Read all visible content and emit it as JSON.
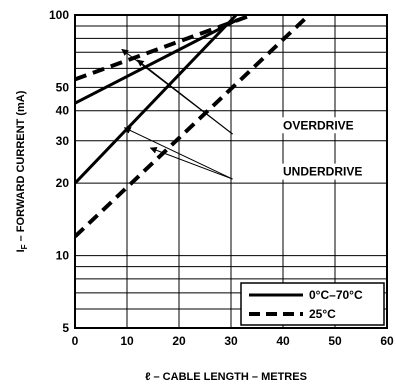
{
  "chart_data": {
    "type": "line",
    "title": "",
    "xlabel": "ℓ – CABLE LENGTH – METRES",
    "ylabel": {
      "prefix": "I",
      "subscript": "F",
      "suffix": " – FORWARD CURRENT (mA)"
    },
    "x_ticks": [
      0,
      10,
      20,
      30,
      40,
      50,
      60
    ],
    "x_tick_labels": [
      "0",
      "10",
      "20",
      "30",
      "40",
      "50",
      "60"
    ],
    "y_scale": "log",
    "y_major_ticks": [
      5,
      10,
      20,
      30,
      40,
      50,
      100
    ],
    "y_tick_labels": [
      "5",
      "10",
      "20",
      "30",
      "40",
      "50",
      "100"
    ],
    "y_gridlines": [
      5,
      6,
      7,
      8,
      9,
      10,
      20,
      30,
      40,
      50,
      60,
      70,
      80,
      90,
      100
    ],
    "xlim": [
      0,
      60
    ],
    "ylim": [
      5,
      100
    ],
    "grid": true,
    "legend_position": "bottom-right",
    "legend": [
      {
        "label": "0°C–70°C",
        "style": "solid"
      },
      {
        "label": "25°C",
        "style": "dashed"
      }
    ],
    "series": [
      {
        "group": "OVERDRIVE",
        "temperature": "0°C–70°C",
        "style": "solid",
        "x": [
          0,
          31
        ],
        "y": [
          43,
          95
        ]
      },
      {
        "group": "OVERDRIVE",
        "temperature": "25°C",
        "style": "dashed",
        "x": [
          0,
          34
        ],
        "y": [
          54,
          100
        ]
      },
      {
        "group": "UNDERDRIVE",
        "temperature": "0°C–70°C",
        "style": "solid",
        "x": [
          0,
          31
        ],
        "y": [
          20,
          100
        ]
      },
      {
        "group": "UNDERDRIVE",
        "temperature": "25°C",
        "style": "dashed",
        "x": [
          0,
          45
        ],
        "y": [
          12,
          100
        ]
      }
    ],
    "annotations": [
      {
        "text": "OVERDRIVE",
        "targets": [
          {
            "x": 9,
            "y": 72
          },
          {
            "x": 12,
            "y": 65
          }
        ]
      },
      {
        "text": "UNDERDRIVE",
        "targets": [
          {
            "x": 9.5,
            "y": 34
          },
          {
            "x": 14.5,
            "y": 28
          }
        ]
      }
    ]
  }
}
